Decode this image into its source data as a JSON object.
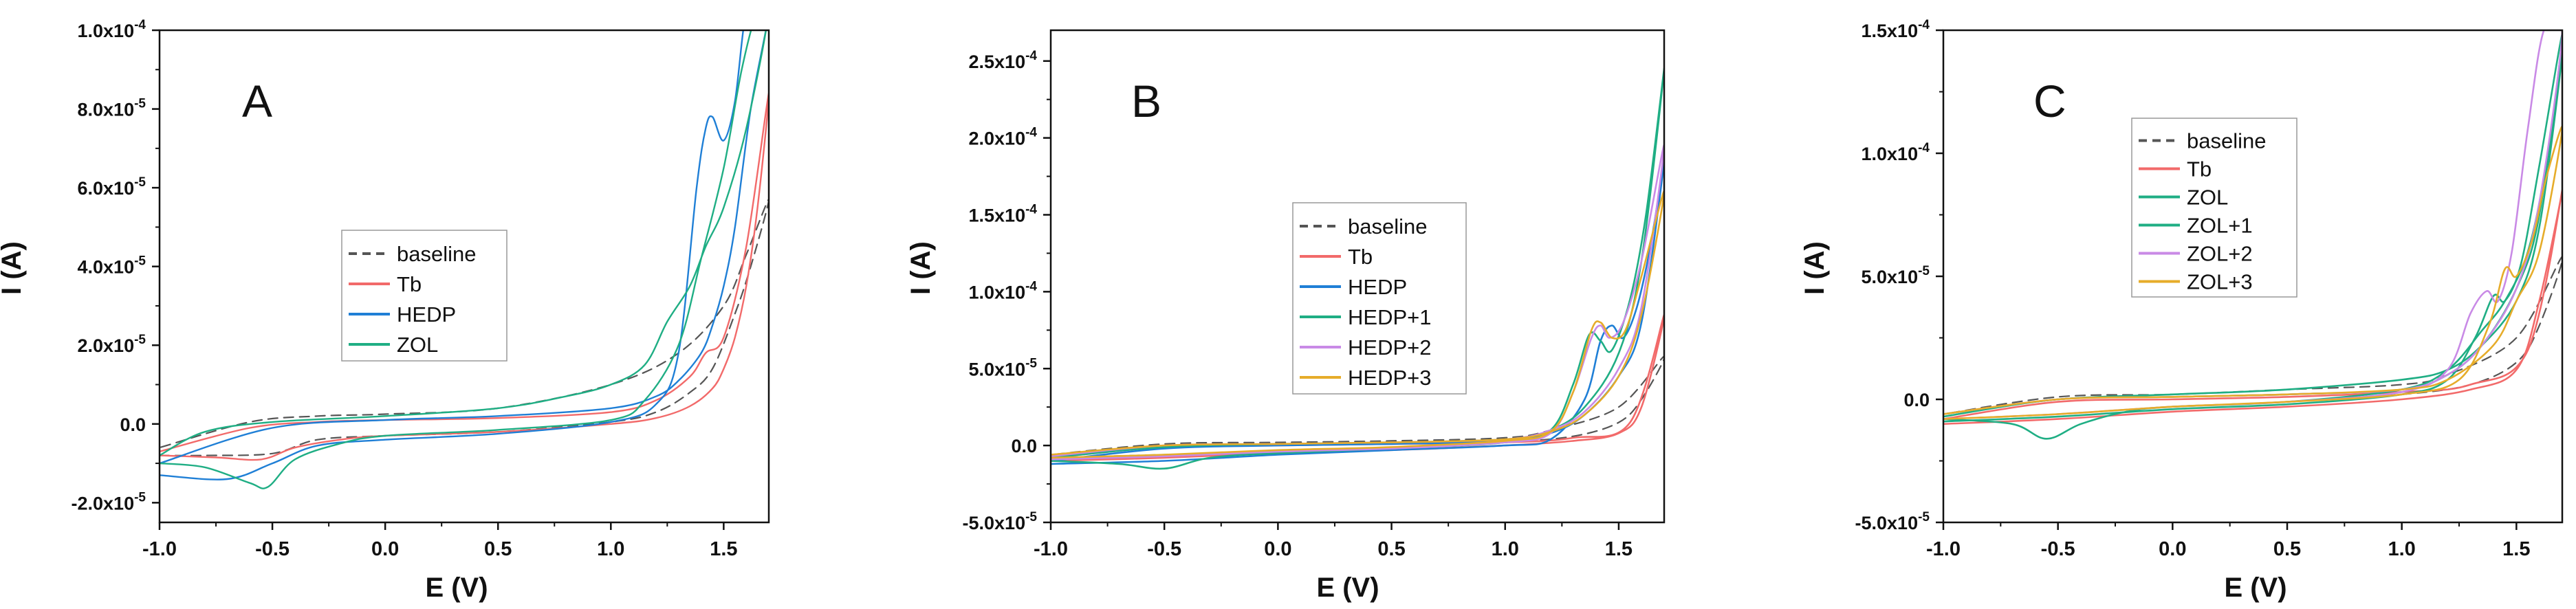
{
  "figure": {
    "description_free": true
  },
  "colors": {
    "baseline": "#555555",
    "Tb": "#f26a6a",
    "HEDP": "#1f7fd6",
    "ZOL": "#1fae84",
    "HEDP+1": "#1fae84",
    "HEDP+2": "#c98ae6",
    "HEDP+3": "#e6ac2a",
    "ZOL+1": "#1fae84",
    "ZOL+2": "#c98ae6",
    "ZOL+3": "#e6ac2a"
  },
  "chart_data": [
    {
      "panel": "A",
      "type": "line",
      "xlabel": "E (V)",
      "ylabel": "I (A)",
      "xlim": [
        -1.0,
        1.7
      ],
      "ylim": [
        -2.5e-05,
        0.0001
      ],
      "xticks": [
        -1.0,
        -0.5,
        0.0,
        0.5,
        1.0,
        1.5
      ],
      "xtick_labels": [
        "-1.0",
        "-0.5",
        "0.0",
        "0.5",
        "1.0",
        "1.5"
      ],
      "yticks": [
        -2e-05,
        0,
        2e-05,
        4e-05,
        6e-05,
        8e-05,
        0.0001
      ],
      "ytick_labels": [
        "-2.0x10",
        "0.0",
        "2.0x10",
        "4.0x10",
        "6.0x10",
        "8.0x10",
        "1.0x10"
      ],
      "ytick_exponents": [
        "-5",
        "",
        "-5",
        "-5",
        "-5",
        "-5",
        "-4"
      ],
      "legend": [
        "baseline",
        "Tb",
        "HEDP",
        "ZOL"
      ],
      "series": [
        {
          "name": "baseline",
          "style": "dashed",
          "width": 2.2,
          "x": [
            -1.0,
            -0.8,
            -0.5,
            -0.3,
            0.0,
            0.5,
            1.0,
            1.2,
            1.35,
            1.45,
            1.55,
            1.62,
            1.7,
            1.6,
            1.5,
            1.3,
            1.0,
            0.5,
            0.0,
            -0.3,
            -0.6,
            -1.0
          ],
          "y": [
            -8e-06,
            -8e-06,
            -7.5e-06,
            -4e-06,
            -3e-06,
            -2e-06,
            5e-07,
            3e-06,
            8e-06,
            1.4e-05,
            2.8e-05,
            4e-05,
            5.7e-05,
            4.3e-05,
            3e-05,
            1.8e-05,
            1e-05,
            4e-06,
            2.5e-06,
            2e-06,
            5e-07,
            -6e-06
          ]
        },
        {
          "name": "Tb",
          "style": "solid",
          "width": 2.4,
          "x": [
            -1.0,
            -0.75,
            -0.55,
            -0.4,
            -0.2,
            0.0,
            0.5,
            1.0,
            1.2,
            1.35,
            1.45,
            1.5,
            1.55,
            1.6,
            1.65,
            1.7,
            1.6,
            1.5,
            1.42,
            1.35,
            1.2,
            1.0,
            0.5,
            0.0,
            -0.3,
            -0.6,
            -1.0
          ],
          "y": [
            -8e-06,
            -8.5e-06,
            -9e-06,
            -6e-06,
            -4e-06,
            -3e-06,
            -2e-06,
            0.0,
            1.5e-06,
            4.5e-06,
            9e-06,
            1.4e-05,
            2.2e-05,
            3.5e-05,
            5.5e-05,
            8.4e-05,
            4.5e-05,
            2.2e-05,
            1.8e-05,
            1.2e-05,
            6e-06,
            3e-06,
            1.5e-06,
            1e-06,
            5e-07,
            -1e-06,
            -7e-06
          ]
        },
        {
          "name": "HEDP",
          "style": "solid",
          "width": 2.4,
          "x": [
            -1.0,
            -0.7,
            -0.5,
            -0.3,
            0.0,
            0.5,
            1.0,
            1.2,
            1.3,
            1.38,
            1.42,
            1.45,
            1.5,
            1.55,
            1.6,
            1.65,
            1.7,
            1.62,
            1.55,
            1.5,
            1.45,
            1.4,
            1.3,
            1.2,
            1.0,
            0.5,
            0.0,
            -0.5,
            -1.0
          ],
          "y": [
            -1.3e-05,
            -1.4e-05,
            -1e-05,
            -5.5e-06,
            -4e-06,
            -2.5e-06,
            5e-07,
            5e-06,
            1.8e-05,
            6e-05,
            7.5e-05,
            7.8e-05,
            7.2e-05,
            8.2e-05,
            0.000105,
            0.000105,
            0.000105,
            8e-05,
            5e-05,
            3.5e-05,
            2.5e-05,
            1.8e-05,
            1.1e-05,
            7e-06,
            4e-06,
            2e-06,
            1e-06,
            -1e-06,
            -1e-05
          ]
        },
        {
          "name": "ZOL",
          "style": "solid",
          "width": 2.4,
          "x": [
            -1.0,
            -0.8,
            -0.6,
            -0.52,
            -0.4,
            -0.2,
            0.0,
            0.5,
            1.0,
            1.15,
            1.3,
            1.4,
            1.5,
            1.58,
            1.65,
            1.7,
            1.6,
            1.5,
            1.42,
            1.35,
            1.25,
            1.15,
            1.0,
            0.8,
            0.5,
            0.0,
            -0.5,
            -0.8,
            -1.0
          ],
          "y": [
            -1e-05,
            -1.1e-05,
            -1.5e-05,
            -1.6e-05,
            -9e-06,
            -5e-06,
            -3e-06,
            -1.5e-06,
            1e-06,
            6e-06,
            2e-05,
            4.2e-05,
            6.5e-05,
            9e-05,
            0.000105,
            0.000105,
            7.5e-05,
            5.5e-05,
            4.5e-05,
            3.5e-05,
            2.6e-05,
            1.5e-05,
            1e-05,
            7e-06,
            4e-06,
            2e-06,
            5e-07,
            -2e-06,
            -8e-06
          ]
        }
      ]
    },
    {
      "panel": "B",
      "type": "line",
      "xlabel": "E (V)",
      "ylabel": "I (A)",
      "xlim": [
        -1.0,
        1.7
      ],
      "ylim": [
        -5e-05,
        0.00027
      ],
      "xticks": [
        -1.0,
        -0.5,
        0.0,
        0.5,
        1.0,
        1.5
      ],
      "xtick_labels": [
        "-1.0",
        "-0.5",
        "0.0",
        "0.5",
        "1.0",
        "1.5"
      ],
      "yticks": [
        -5e-05,
        0,
        5e-05,
        0.0001,
        0.00015,
        0.0002,
        0.00025
      ],
      "ytick_labels": [
        "-5.0x10",
        "0.0",
        "5.0x10",
        "1.0x10",
        "1.5x10",
        "2.0x10",
        "2.5x10"
      ],
      "ytick_exponents": [
        "-5",
        "",
        "-5",
        "-4",
        "-4",
        "-4",
        "-4"
      ],
      "legend": [
        "baseline",
        "Tb",
        "HEDP",
        "HEDP+1",
        "HEDP+2",
        "HEDP+3"
      ],
      "series": [
        {
          "name": "baseline",
          "style": "dashed",
          "width": 2.2,
          "x": [
            -1.0,
            -0.5,
            0.0,
            0.5,
            1.0,
            1.3,
            1.5,
            1.6,
            1.7,
            1.5,
            1.2,
            1.0,
            0.5,
            0.0,
            -0.5,
            -1.0
          ],
          "y": [
            -8e-06,
            -6e-06,
            -4e-06,
            -2e-06,
            2e-06,
            6e-06,
            1.5e-05,
            3e-05,
            5.8e-05,
            2.5e-05,
            1e-05,
            5e-06,
            3e-06,
            2e-06,
            1e-06,
            -6e-06
          ]
        },
        {
          "name": "Tb",
          "style": "solid",
          "width": 2.6,
          "x": [
            -1.0,
            -0.5,
            0.0,
            0.5,
            1.0,
            1.3,
            1.5,
            1.6,
            1.7,
            1.55,
            1.3,
            1.0,
            0.5,
            0.0,
            -0.5,
            -1.0
          ],
          "y": [
            -1e-05,
            -8e-06,
            -5e-06,
            -3e-06,
            0,
            3e-06,
            8e-06,
            2.5e-05,
            8.5e-05,
            1.5e-05,
            5e-06,
            2e-06,
            1e-06,
            0,
            -1e-06,
            -8e-06
          ]
        },
        {
          "name": "HEDP",
          "style": "solid",
          "width": 2.6,
          "x": [
            -1.0,
            -0.5,
            0.0,
            0.5,
            1.0,
            1.2,
            1.35,
            1.42,
            1.47,
            1.52,
            1.58,
            1.64,
            1.7,
            1.6,
            1.5,
            1.35,
            1.2,
            1.0,
            0.5,
            0.0,
            -0.5,
            -1.0
          ],
          "y": [
            -1.2e-05,
            -1e-05,
            -6e-06,
            -3e-06,
            0,
            4e-06,
            3e-05,
            6.8e-05,
            7.8e-05,
            7e-05,
            9e-05,
            0.00013,
            0.000185,
            8e-05,
            4.5e-05,
            2e-05,
            8e-06,
            3e-06,
            1e-06,
            0,
            -2e-06,
            -1e-05
          ]
        },
        {
          "name": "HEDP+1",
          "style": "solid",
          "width": 2.6,
          "x": [
            -1.0,
            -0.7,
            -0.5,
            -0.3,
            0.0,
            0.5,
            1.0,
            1.2,
            1.3,
            1.37,
            1.42,
            1.47,
            1.55,
            1.62,
            1.7,
            1.6,
            1.5,
            1.35,
            1.2,
            1.0,
            0.5,
            0.0,
            -0.5,
            -1.0
          ],
          "y": [
            -1e-05,
            -1.2e-05,
            -1.5e-05,
            -8e-06,
            -5e-06,
            -2e-06,
            2e-06,
            1e-05,
            4e-05,
            7.2e-05,
            6.8e-05,
            6.2e-05,
            9.5e-05,
            0.00015,
            0.000245,
            0.00012,
            6e-05,
            2.5e-05,
            1e-05,
            4e-06,
            2e-06,
            1e-06,
            -1e-06,
            -8e-06
          ]
        },
        {
          "name": "HEDP+2",
          "style": "solid",
          "width": 2.6,
          "x": [
            -1.0,
            -0.5,
            0.0,
            0.5,
            1.0,
            1.2,
            1.3,
            1.38,
            1.42,
            1.46,
            1.52,
            1.6,
            1.7,
            1.6,
            1.5,
            1.35,
            1.2,
            1.0,
            0.5,
            0.0,
            -0.5,
            -1.0
          ],
          "y": [
            -9e-06,
            -7e-06,
            -4e-06,
            -2e-06,
            2e-06,
            8e-06,
            3.5e-05,
            7e-05,
            7.8e-05,
            7e-05,
            8e-05,
            0.00012,
            0.000195,
            9e-05,
            5e-05,
            2.2e-05,
            1e-05,
            4e-06,
            2e-06,
            1e-06,
            0,
            -7e-06
          ]
        },
        {
          "name": "HEDP+3",
          "style": "solid",
          "width": 2.6,
          "x": [
            -1.0,
            -0.5,
            0.0,
            0.5,
            1.0,
            1.2,
            1.3,
            1.38,
            1.42,
            1.47,
            1.53,
            1.6,
            1.7,
            1.6,
            1.5,
            1.35,
            1.2,
            1.0,
            0.5,
            0.0,
            -0.5,
            -1.0
          ],
          "y": [
            -8e-06,
            -6e-06,
            -3e-06,
            -1e-06,
            3e-06,
            9e-06,
            3.5e-05,
            7.5e-05,
            8e-05,
            7e-05,
            7.5e-05,
            0.00011,
            0.000165,
            8.5e-05,
            4.5e-05,
            2e-05,
            9e-06,
            4e-06,
            2e-06,
            1e-06,
            0,
            -6e-06
          ]
        }
      ]
    },
    {
      "panel": "C",
      "type": "line",
      "xlabel": "E (V)",
      "ylabel": "I (A)",
      "xlim": [
        -1.0,
        1.7
      ],
      "ylim": [
        -5e-05,
        0.00015
      ],
      "xticks": [
        -1.0,
        -0.5,
        0.0,
        0.5,
        1.0,
        1.5
      ],
      "xtick_labels": [
        "-1.0",
        "-0.5",
        "0.0",
        "0.5",
        "1.0",
        "1.5"
      ],
      "yticks": [
        -5e-05,
        0,
        5e-05,
        0.0001,
        0.00015
      ],
      "ytick_labels": [
        "-5.0x10",
        "0.0",
        "5.0x10",
        "1.0x10",
        "1.5x10"
      ],
      "ytick_exponents": [
        "-5",
        "",
        "-5",
        "-4",
        "-4"
      ],
      "legend": [
        "baseline",
        "Tb",
        "ZOL",
        "ZOL+1",
        "ZOL+2",
        "ZOL+3"
      ],
      "series": [
        {
          "name": "baseline",
          "style": "dashed",
          "width": 2.2,
          "x": [
            -1.0,
            -0.5,
            0.0,
            0.5,
            1.0,
            1.3,
            1.5,
            1.6,
            1.7,
            1.5,
            1.2,
            1.0,
            0.5,
            0.0,
            -0.5,
            -1.0
          ],
          "y": [
            -8e-06,
            -6e-06,
            -3e-06,
            -1e-06,
            2e-06,
            6e-06,
            1.5e-05,
            3e-05,
            5.8e-05,
            2.5e-05,
            1e-05,
            6e-06,
            4e-06,
            2e-06,
            1e-06,
            -6e-06
          ]
        },
        {
          "name": "Tb",
          "style": "solid",
          "width": 2.6,
          "x": [
            -1.0,
            -0.5,
            0.0,
            0.5,
            1.0,
            1.3,
            1.5,
            1.6,
            1.7,
            1.55,
            1.3,
            1.0,
            0.5,
            0.0,
            -0.5,
            -1.0
          ],
          "y": [
            -1e-05,
            -8e-06,
            -5e-06,
            -3e-06,
            0,
            4e-06,
            1.2e-05,
            4e-05,
            8.5e-05,
            2e-05,
            6e-06,
            3e-06,
            1e-06,
            0,
            -1e-06,
            -8e-06
          ]
        },
        {
          "name": "ZOL",
          "style": "solid",
          "width": 2.6,
          "x": [
            -1.0,
            -0.7,
            -0.55,
            -0.4,
            -0.2,
            0.0,
            0.5,
            1.0,
            1.2,
            1.35,
            1.45,
            1.55,
            1.63,
            1.7,
            1.6,
            1.5,
            1.35,
            1.2,
            1.0,
            0.5,
            0.0,
            -0.5,
            -1.0
          ],
          "y": [
            -8e-06,
            -1e-05,
            -1.6e-05,
            -1e-05,
            -5e-06,
            -3e-06,
            -1e-06,
            4e-06,
            1.2e-05,
            2.8e-05,
            4e-05,
            6e-05,
            9.5e-05,
            0.00014,
            7e-05,
            4e-05,
            2.2e-05,
            1.2e-05,
            8e-06,
            4e-06,
            2e-06,
            0,
            -6e-06
          ]
        },
        {
          "name": "ZOL+1",
          "style": "solid",
          "width": 2.6,
          "x": [
            -1.0,
            -0.5,
            0.0,
            0.5,
            1.0,
            1.2,
            1.32,
            1.4,
            1.45,
            1.52,
            1.6,
            1.7,
            1.6,
            1.5,
            1.35,
            1.2,
            1.0,
            0.5,
            0.0,
            -0.5,
            -1.0
          ],
          "y": [
            -9e-06,
            -7e-06,
            -4e-06,
            -2e-06,
            2e-06,
            8e-06,
            2.5e-05,
            4.2e-05,
            4e-05,
            5.5e-05,
            9.5e-05,
            0.000148,
            7.5e-05,
            4.5e-05,
            2.2e-05,
            1e-05,
            4e-06,
            2e-06,
            1e-06,
            0,
            -7e-06
          ]
        },
        {
          "name": "ZOL+2",
          "style": "solid",
          "width": 2.6,
          "x": [
            -1.0,
            -0.5,
            0.0,
            0.5,
            1.0,
            1.2,
            1.3,
            1.37,
            1.42,
            1.48,
            1.55,
            1.62,
            1.7,
            1.6,
            1.5,
            1.35,
            1.2,
            1.0,
            0.5,
            0.0,
            -0.5,
            -1.0
          ],
          "y": [
            -8e-06,
            -6e-06,
            -3e-06,
            -1e-06,
            3e-06,
            1.2e-05,
            3.5e-05,
            4.4e-05,
            4e-05,
            6e-05,
            0.00011,
            0.00015,
            0.00015,
            8e-05,
            4.5e-05,
            2.2e-05,
            1e-05,
            4e-06,
            2e-06,
            1e-06,
            0,
            -6e-06
          ]
        },
        {
          "name": "ZOL+3",
          "style": "solid",
          "width": 2.6,
          "x": [
            -1.0,
            -0.5,
            0.0,
            0.5,
            1.0,
            1.25,
            1.38,
            1.45,
            1.5,
            1.57,
            1.63,
            1.7,
            1.6,
            1.5,
            1.4,
            1.2,
            1.0,
            0.5,
            0.0,
            -0.5,
            -1.0
          ],
          "y": [
            -8e-06,
            -6e-06,
            -3e-06,
            -1e-06,
            2e-06,
            8e-06,
            3e-05,
            5.3e-05,
            5e-05,
            6.5e-05,
            9e-05,
            0.00011,
            6e-05,
            4e-05,
            2.2e-05,
            8e-06,
            4e-06,
            2e-06,
            1e-06,
            0,
            -6e-06
          ]
        }
      ]
    }
  ]
}
